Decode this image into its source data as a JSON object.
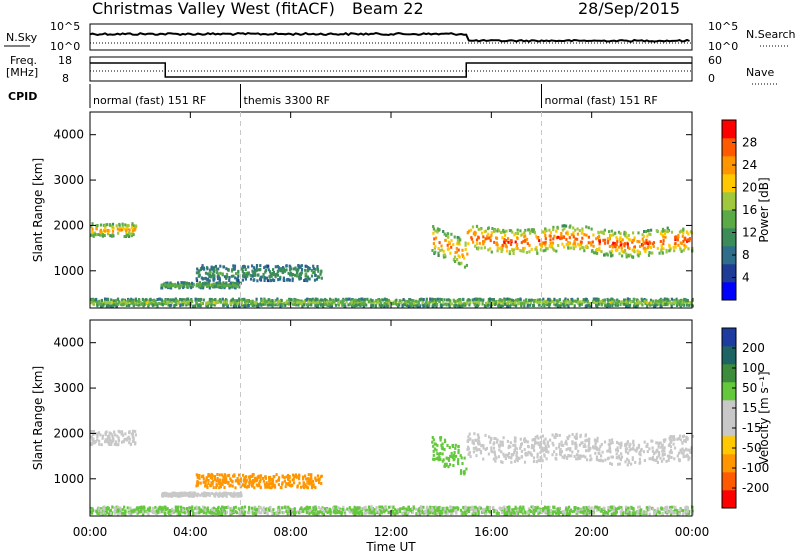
{
  "header": {
    "station": "Christmas Valley West (fitACF)",
    "beam": "Beam 22",
    "date": "28/Sep/2015"
  },
  "top_panels": {
    "nsky_label": "N.Sky",
    "nsky_ticks": [
      "10^5",
      "10^0"
    ],
    "nsearch_label": "N.Search",
    "nsearch_ticks": [
      "10^5",
      "10^0"
    ],
    "freq_label_line1": "Freq.",
    "freq_label_line2": "[MHz]",
    "freq_ticks": [
      "18",
      "8"
    ],
    "nave_label": "Nave",
    "nave_ticks": [
      "60",
      "0"
    ],
    "cpid_label": "CPID",
    "cpid_segments": [
      {
        "label": "normal (fast) 151 RF",
        "start": 0,
        "end": 6
      },
      {
        "label": "themis 3300 RF",
        "start": 6,
        "end": 18
      },
      {
        "label": "normal (fast) 151 RF",
        "start": 18,
        "end": 24
      }
    ],
    "freq_steps": [
      {
        "start": 0,
        "end": 3,
        "mhz": 17
      },
      {
        "start": 3,
        "end": 15,
        "mhz": 10
      },
      {
        "start": 15,
        "end": 24,
        "mhz": 17
      }
    ]
  },
  "colors": {
    "power_scale": [
      "#0000ff",
      "#1e3c96",
      "#2e6e8a",
      "#3c8c5a",
      "#5aaa46",
      "#a0c83c",
      "#ffc800",
      "#ff9600",
      "#ff5a00",
      "#ff0000"
    ],
    "velocity_scale": [
      "#ff0000",
      "#ff5a00",
      "#ff9600",
      "#ffc800",
      "#c8c8c8",
      "#c8c8c8",
      "#64c83c",
      "#3c8c3c",
      "#1e6464",
      "#1e3ca0"
    ],
    "ground_scatter": "#c8c8c8"
  },
  "colorbars": {
    "power": {
      "label": "Power [dB]",
      "ticks": [
        "28",
        "24",
        "20",
        "16",
        "12",
        "8",
        "4"
      ]
    },
    "velocity": {
      "label": "Velocity [m s⁻¹]",
      "ticks": [
        "200",
        "100",
        "50",
        "15",
        "-15",
        "-50",
        "-100",
        "-200"
      ]
    }
  },
  "x_axis": {
    "label": "Time UT",
    "ticks": [
      "00:00",
      "04:00",
      "08:00",
      "12:00",
      "16:00",
      "20:00",
      "00:00"
    ]
  },
  "chart_data": [
    {
      "type": "heatmap",
      "name": "power",
      "ylabel": "Slant Range [km]",
      "xlabel": "",
      "xlim": [
        0,
        24
      ],
      "ylim": [
        180,
        4500
      ],
      "yticks": [
        1000,
        2000,
        3000,
        4000
      ],
      "x_unit": "hours UT",
      "echo_regions": [
        {
          "t0": 0.0,
          "t1": 1.8,
          "r_center": 1900,
          "r_halfwidth": 150,
          "value": 20
        },
        {
          "t0": 2.8,
          "t1": 6.0,
          "r_center": 680,
          "r_halfwidth": 60,
          "value": 12
        },
        {
          "t0": 4.2,
          "t1": 9.2,
          "r_center": 950,
          "r_halfwidth": 170,
          "value": 9
        },
        {
          "t0": 13.6,
          "t1": 15.0,
          "r_center": 1500,
          "r_halfwidth": 300,
          "value": 22
        },
        {
          "t0": 15.0,
          "t1": 24.0,
          "r_center": 1700,
          "r_halfwidth": 280,
          "value": 24
        },
        {
          "t0": 0.0,
          "t1": 24.0,
          "r_center": 300,
          "r_halfwidth": 80,
          "value": 14
        }
      ]
    },
    {
      "type": "heatmap",
      "name": "velocity",
      "ylabel": "Slant Range [km]",
      "xlabel": "Time UT",
      "xlim": [
        0,
        24
      ],
      "ylim": [
        180,
        4500
      ],
      "yticks": [
        1000,
        2000,
        3000,
        4000
      ],
      "x_unit": "hours UT",
      "echo_regions": [
        {
          "t0": 0.0,
          "t1": 1.8,
          "r_center": 1900,
          "r_halfwidth": 150,
          "value": 0
        },
        {
          "t0": 2.8,
          "t1": 6.0,
          "r_center": 650,
          "r_halfwidth": 40,
          "value": 0
        },
        {
          "t0": 4.2,
          "t1": 9.2,
          "r_center": 950,
          "r_halfwidth": 150,
          "value": -30
        },
        {
          "t0": 13.6,
          "t1": 15.0,
          "r_center": 1500,
          "r_halfwidth": 300,
          "value": 40
        },
        {
          "t0": 15.0,
          "t1": 24.0,
          "r_center": 1700,
          "r_halfwidth": 280,
          "value": 0
        },
        {
          "t0": 0.0,
          "t1": 24.0,
          "r_center": 300,
          "r_halfwidth": 80,
          "value": 40
        }
      ]
    }
  ]
}
